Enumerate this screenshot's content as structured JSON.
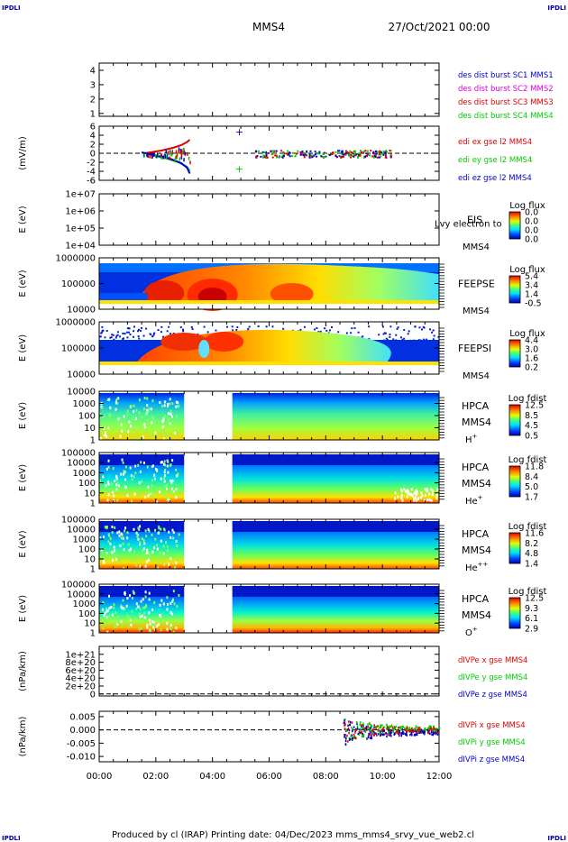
{
  "header": {
    "corner_label": "IPDLI",
    "spacecraft": "MMS4",
    "datetime": "27/Oct/2021 00:00"
  },
  "footer": {
    "credit": "Produced by cl (IRAP)   Printing date: 04/Dec/2023   mms_mms4_srvy_vue_web2.cl"
  },
  "colors": {
    "black": "#000000",
    "red": "#e00000",
    "green": "#00cc00",
    "blue": "#0000cc",
    "magenta": "#e000e0",
    "dark_blue": "#0000aa"
  },
  "chart_data": [
    {
      "type": "line",
      "id": "p1",
      "ylabel": "",
      "ylim": [
        0.8,
        4.5
      ],
      "ticks": [
        "1",
        "2",
        "3",
        "4"
      ],
      "legend": [
        {
          "text": "des dist burst SC1 MMS1",
          "color": "#0000cc"
        },
        {
          "text": "des dist burst SC2 MMS2",
          "color": "#e000e0"
        },
        {
          "text": "des dist burst SC3 MMS3",
          "color": "#e00000"
        },
        {
          "text": "des dist burst SC4 MMS4",
          "color": "#00cc00"
        }
      ],
      "series": []
    },
    {
      "type": "line",
      "id": "p2",
      "ylabel": "(mV/m)",
      "ylim": [
        -6,
        6
      ],
      "ticks": [
        "-6",
        "-4",
        "-2",
        "0",
        "2",
        "4",
        "6"
      ],
      "legend": [
        {
          "text": "edi ex gse l2 MMS4",
          "color": "#e00000"
        },
        {
          "text": "edi ey gse l2 MMS4",
          "color": "#00cc00"
        },
        {
          "text": "edi ez gse l2 MMS4",
          "color": "#0000cc"
        }
      ],
      "series": [
        {
          "name": "edi ex gse l2 MMS4",
          "color": "#e00000",
          "points": [
            [
              1.6,
              0
            ],
            [
              2.2,
              0.6
            ],
            [
              2.6,
              1.2
            ],
            [
              2.9,
              1.8
            ],
            [
              3.1,
              2.5
            ],
            [
              3.2,
              3.0
            ]
          ]
        },
        {
          "name": "edi ey gse l2 MMS4",
          "color": "#00cc00",
          "points": [
            [
              1.8,
              -0.3
            ],
            [
              2.4,
              -1.2
            ],
            [
              2.8,
              -2.0
            ],
            [
              3.1,
              -3.0
            ],
            [
              3.2,
              -4.0
            ]
          ]
        },
        {
          "name": "edi ez gse l2 MMS4",
          "color": "#0000cc",
          "points": [
            [
              1.5,
              0.2
            ],
            [
              2.0,
              -0.5
            ],
            [
              2.5,
              -1.2
            ],
            [
              2.9,
              -2.2
            ],
            [
              3.1,
              -3.2
            ],
            [
              3.2,
              -4.5
            ]
          ]
        }
      ],
      "markers": [
        {
          "t": 4.95,
          "v": 4.8,
          "color": "#0000cc"
        },
        {
          "t": 4.95,
          "v": -3.4,
          "color": "#00cc00"
        }
      ]
    },
    {
      "type": "heatmap",
      "id": "p3",
      "instrument": "EIS",
      "sc": "MMS4",
      "ylabel": "E (eV)",
      "ticks": [
        "1e+04",
        "1e+05",
        "1e+06",
        "1e+07"
      ],
      "overlay": "Lvy electron to",
      "colorbar_title": "Log flux",
      "colorbar_ticks": [
        "0.0",
        "0.0",
        "0.0",
        "0.0"
      ]
    },
    {
      "type": "heatmap",
      "id": "p4",
      "instrument": "FEEPSE",
      "sc": "MMS4",
      "ylabel": "E (eV)",
      "ticks": [
        "10000",
        "100000",
        "1000000"
      ],
      "colorbar_title": "Log flux",
      "colorbar_ticks": [
        "5.4",
        "3.4",
        "1.4",
        "-0.5"
      ]
    },
    {
      "type": "heatmap",
      "id": "p5",
      "instrument": "FEEPSI",
      "sc": "MMS4",
      "ylabel": "E (eV)",
      "ticks": [
        "10000",
        "100000",
        "1000000"
      ],
      "colorbar_title": "Log flux",
      "colorbar_ticks": [
        "4.4",
        "3.0",
        "1.6",
        "0.2"
      ]
    },
    {
      "type": "heatmap",
      "id": "p6",
      "instrument": "HPCA",
      "sc": "MMS4",
      "species": "H",
      "species_sup": "+",
      "ylabel": "E (eV)",
      "ticks": [
        "1",
        "10",
        "100",
        "1000",
        "10000"
      ],
      "colorbar_title": "Log fdist",
      "colorbar_ticks": [
        "12.5",
        "8.5",
        "4.5",
        "0.5"
      ]
    },
    {
      "type": "heatmap",
      "id": "p7",
      "instrument": "HPCA",
      "sc": "MMS4",
      "species": "He",
      "species_sup": "+",
      "ylabel": "E (eV)",
      "ticks": [
        "1",
        "10",
        "100",
        "1000",
        "10000",
        "100000"
      ],
      "colorbar_title": "Log fdist",
      "colorbar_ticks": [
        "11.8",
        "8.4",
        "5.0",
        "1.7"
      ]
    },
    {
      "type": "heatmap",
      "id": "p8",
      "instrument": "HPCA",
      "sc": "MMS4",
      "species": "He",
      "species_sup": "++",
      "ylabel": "E (eV)",
      "ticks": [
        "1",
        "10",
        "100",
        "1000",
        "10000",
        "100000"
      ],
      "colorbar_title": "Log fdist",
      "colorbar_ticks": [
        "11.6",
        "8.2",
        "4.8",
        "1.4"
      ]
    },
    {
      "type": "heatmap",
      "id": "p9",
      "instrument": "HPCA",
      "sc": "MMS4",
      "species": "O",
      "species_sup": "+",
      "ylabel": "E (eV)",
      "ticks": [
        "1",
        "10",
        "100",
        "1000",
        "10000",
        "100000"
      ],
      "colorbar_title": "Log fdist",
      "colorbar_ticks": [
        "12.5",
        "9.3",
        "6.1",
        "2.9"
      ]
    },
    {
      "type": "line",
      "id": "p10",
      "ylabel": "(nPa/km)",
      "ylim": [
        -5e+19,
        1.2e+21
      ],
      "ticks": [
        "0",
        "2e+20",
        "4e+20",
        "6e+20",
        "8e+20",
        "1e+21"
      ],
      "legend": [
        {
          "text": "dIVPe x gse MMS4",
          "color": "#e00000"
        },
        {
          "text": "dIVPe y gse MMS4",
          "color": "#00cc00"
        },
        {
          "text": "dIVPe z gse MMS4",
          "color": "#0000cc"
        }
      ],
      "series": []
    },
    {
      "type": "line",
      "id": "p11",
      "ylabel": "(nPa/km)",
      "ylim": [
        -0.012,
        0.007
      ],
      "ticks": [
        "-0.010",
        "-0.005",
        "0.000",
        "0.005"
      ],
      "legend": [
        {
          "text": "dIVPi x gse MMS4",
          "color": "#e00000"
        },
        {
          "text": "dIVPi y gse MMS4",
          "color": "#00cc00"
        },
        {
          "text": "dIVPi z gse MMS4",
          "color": "#0000cc"
        }
      ],
      "series": []
    }
  ],
  "xaxis": {
    "ticks": [
      "00:00",
      "02:00",
      "04:00",
      "06:00",
      "08:00",
      "10:00",
      "12:00"
    ],
    "range_hours": [
      0,
      12
    ]
  }
}
